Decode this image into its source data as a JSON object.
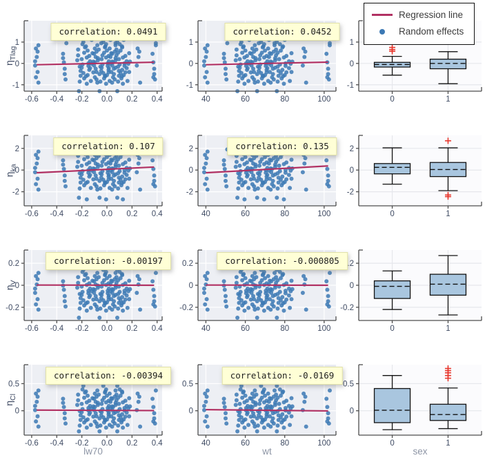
{
  "colors": {
    "dot": "#3c79b4",
    "line": "#b13163",
    "outlier": "#e8392f",
    "box_fill": "#a9c6df",
    "scatter_bg": "#edeff4",
    "box_bg": "#fbfbfd",
    "grid_scatter": "#ffffff",
    "grid_box": "#e6e7ec",
    "tick_text": "#3f4b63",
    "axis": "#4d4d4d",
    "title_text": "#8d95a5",
    "badge_bg": "#ffffd6",
    "badge_border": "#e0e0a8"
  },
  "legend": {
    "items": [
      {
        "label": "Regression line",
        "type": "line",
        "color": "#b13163"
      },
      {
        "label": "Random effects",
        "type": "dot",
        "color": "#3c79b4"
      }
    ]
  },
  "chart_data": {
    "type": "scatter+boxplot-grid",
    "description": "4x3 grid: random effects (eta) vs covariates; scatter with regression line for lw70 and wt, boxplots by sex",
    "x_axes": {
      "lw70": {
        "label": "lw70",
        "lim": [
          -0.66,
          0.44
        ],
        "ticks": [
          -0.6,
          -0.4,
          -0.2,
          0.0,
          0.2,
          0.4
        ],
        "tick_labels": [
          "-0.6",
          "-0.4",
          "-0.2",
          "0.0",
          "0.2",
          "0.4"
        ]
      },
      "wt": {
        "label": "wt",
        "lim": [
          36,
          106
        ],
        "ticks": [
          40,
          60,
          80,
          100
        ],
        "tick_labels": [
          "40",
          "60",
          "80",
          "100"
        ]
      },
      "sex": {
        "label": "sex",
        "categories": [
          "0",
          "1"
        ]
      }
    },
    "wt_strips": [
      [
        40,
        9
      ],
      [
        50,
        7
      ],
      [
        56,
        8
      ],
      [
        58,
        9
      ],
      [
        60,
        10
      ],
      [
        62,
        8
      ],
      [
        64,
        12
      ],
      [
        66,
        9
      ],
      [
        68,
        10
      ],
      [
        70,
        12
      ],
      [
        72,
        11
      ],
      [
        74,
        10
      ],
      [
        76,
        12
      ],
      [
        78,
        8
      ],
      [
        80,
        10
      ],
      [
        83,
        7
      ],
      [
        90,
        5
      ],
      [
        102,
        8
      ]
    ],
    "rows": [
      {
        "param": {
          "symbol": "η",
          "subscript": "Tlag"
        },
        "ylim": [
          -1.3,
          2.0
        ],
        "yticks": [
          -1,
          0,
          1
        ],
        "ytick_labels": [
          "-1",
          "0",
          "1"
        ],
        "correlations": [
          0.0491,
          0.0452
        ],
        "correlation_labels": [
          "correlation: 0.0491",
          "correlation: 0.0452"
        ],
        "regression": [
          [
            [
              -0.56,
              -0.06
            ],
            [
              0.376,
              0.055
            ]
          ],
          [
            [
              40,
              -0.06
            ],
            [
              102,
              0.06
            ]
          ]
        ],
        "etas": [
          0.1,
          -0.4,
          0.7,
          -0.9,
          0.3,
          -0.1,
          0.55,
          -0.65,
          0.85,
          -0.25,
          0.45,
          -0.75,
          0.05,
          0.95,
          -0.5,
          0.25,
          -0.15,
          0.65,
          -0.35,
          -1.3,
          0.15,
          -0.85,
          0.38,
          -0.58,
          1.0,
          -0.2,
          0.5,
          -0.05,
          0.75,
          -0.45,
          0.2,
          -0.7,
          0.9,
          -0.3,
          0.6,
          -0.6,
          0.0,
          -0.95,
          0.35,
          -0.55,
          0.8,
          -0.12,
          0.28,
          -0.42,
          1.1,
          -0.22,
          0.48,
          -0.82,
          0.08,
          -0.02
        ],
        "boxes": [
          {
            "category": "0",
            "lo": -0.55,
            "q1": -0.17,
            "med": -0.05,
            "q3": 0.05,
            "hi": 0.33,
            "outliers": [
              0.57,
              0.65,
              0.75
            ]
          },
          {
            "category": "1",
            "lo": -0.95,
            "q1": -0.25,
            "med": 0.0,
            "q3": 0.2,
            "hi": 0.55,
            "outliers": []
          }
        ]
      },
      {
        "param": {
          "symbol": "η",
          "subscript": "ka"
        },
        "ylim": [
          -3.3,
          3.2
        ],
        "yticks": [
          -2,
          0,
          2
        ],
        "ytick_labels": [
          "-2",
          "0",
          "2"
        ],
        "correlations": [
          0.107,
          0.135
        ],
        "correlation_labels": [
          "correlation: 0.107",
          "correlation: 0.135"
        ],
        "regression": [
          [
            [
              -0.56,
              -0.25
            ],
            [
              0.376,
              0.28
            ]
          ],
          [
            [
              40,
              -0.25
            ],
            [
              102,
              0.38
            ]
          ]
        ],
        "etas": [
          0.2,
          -0.8,
          1.4,
          -1.8,
          0.6,
          -0.2,
          1.1,
          -1.3,
          1.7,
          -0.5,
          0.9,
          -1.5,
          0.1,
          1.9,
          -1.0,
          0.5,
          -0.3,
          1.3,
          -0.7,
          -2.55,
          0.3,
          -1.7,
          0.75,
          -1.15,
          2.0,
          -0.4,
          1.0,
          -0.1,
          1.5,
          -0.9,
          0.4,
          -1.4,
          1.8,
          -0.6,
          1.2,
          -1.2,
          0.0,
          -2.7,
          0.7,
          -1.1,
          1.6,
          -0.25,
          0.55,
          -0.85,
          2.05,
          -0.45,
          0.95,
          -1.65,
          0.15,
          -0.05
        ],
        "boxes": [
          {
            "category": "0",
            "lo": -1.3,
            "q1": -0.35,
            "med": 0.25,
            "q3": 0.6,
            "hi": 2.05,
            "outliers": []
          },
          {
            "category": "1",
            "lo": -1.9,
            "q1": -0.6,
            "med": 0.05,
            "q3": 0.7,
            "hi": 2.05,
            "outliers": [
              2.7,
              -2.3,
              -2.45
            ]
          }
        ]
      },
      {
        "param": {
          "symbol": "η",
          "subscript": "V"
        },
        "ylim": [
          -0.32,
          0.32
        ],
        "yticks": [
          -0.2,
          0,
          0.2
        ],
        "ytick_labels": [
          "-0.2",
          "0",
          "0.2"
        ],
        "correlations": [
          -0.00197,
          -0.000805
        ],
        "correlation_labels": [
          "correlation: -0.00197",
          "correlation: -0.000805"
        ],
        "regression": [
          [
            [
              -0.56,
              0.002
            ],
            [
              0.376,
              0.0
            ]
          ],
          [
            [
              40,
              0.002
            ],
            [
              102,
              0.0
            ]
          ]
        ],
        "etas": [
          -0.031,
          -0.126,
          0.083,
          -0.221,
          0.007,
          -0.069,
          0.055,
          -0.174,
          0.112,
          -0.098,
          0.036,
          -0.193,
          -0.041,
          0.165,
          -0.145,
          -0.003,
          -0.079,
          0.074,
          -0.117,
          -0.295,
          -0.022,
          -0.212,
          0.022,
          -0.16,
          0.14,
          -0.088,
          0.045,
          -0.06,
          0.093,
          -0.136,
          -0.012,
          -0.183,
          0.121,
          -0.107,
          0.064,
          -0.164,
          -0.05,
          -0.231,
          0.017,
          -0.155,
          0.102,
          -0.073,
          0.003,
          -0.13,
          0.159,
          -0.092,
          0.041,
          -0.206,
          -0.035,
          -0.054
        ],
        "boxes": [
          {
            "category": "0",
            "lo": -0.22,
            "q1": -0.12,
            "med": -0.01,
            "q3": 0.04,
            "hi": 0.13,
            "outliers": []
          },
          {
            "category": "1",
            "lo": -0.27,
            "q1": -0.09,
            "med": 0.01,
            "q3": 0.1,
            "hi": 0.27,
            "outliers": []
          }
        ]
      },
      {
        "param": {
          "symbol": "η",
          "subscript": "Cl"
        },
        "ylim": [
          -0.45,
          0.85
        ],
        "yticks": [
          0,
          0.5
        ],
        "ytick_labels": [
          "0",
          "0.5"
        ],
        "correlations": [
          -0.00394,
          -0.0169
        ],
        "correlation_labels": [
          "correlation: -0.00394",
          "correlation: -0.0169"
        ],
        "regression": [
          [
            [
              -0.56,
              0.012
            ],
            [
              0.376,
              0.003
            ]
          ],
          [
            [
              40,
              0.02
            ],
            [
              102,
              -0.003
            ]
          ]
        ],
        "etas": [
          0.088,
          -0.102,
          0.316,
          -0.292,
          0.164,
          0.012,
          0.259,
          -0.197,
          0.373,
          -0.045,
          0.221,
          -0.235,
          0.069,
          0.55,
          -0.14,
          0.145,
          -0.007,
          0.297,
          -0.083,
          -0.38,
          0.107,
          -0.273,
          0.194,
          -0.17,
          0.46,
          -0.026,
          0.24,
          0.031,
          0.335,
          -0.121,
          0.126,
          -0.216,
          0.392,
          -0.064,
          0.278,
          -0.178,
          0.05,
          -0.311,
          0.183,
          -0.159,
          0.354,
          0.004,
          0.156,
          -0.11,
          0.6,
          -0.034,
          0.232,
          -0.262,
          0.08,
          0.042
        ],
        "boxes": [
          {
            "category": "0",
            "lo": -0.35,
            "q1": -0.22,
            "med": 0.01,
            "q3": 0.41,
            "hi": 0.65,
            "outliers": []
          },
          {
            "category": "1",
            "lo": -0.33,
            "q1": -0.18,
            "med": -0.07,
            "q3": 0.12,
            "hi": 0.42,
            "outliers": [
              0.6,
              0.65,
              0.7,
              0.74,
              0.78
            ]
          }
        ]
      }
    ]
  }
}
